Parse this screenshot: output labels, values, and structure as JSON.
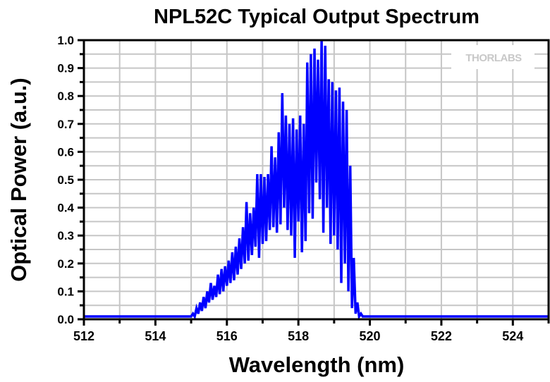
{
  "chart_data": {
    "type": "line",
    "title": "NPL52C Typical Output Spectrum",
    "xlabel": "Wavelength (nm)",
    "ylabel": "Optical Power (a.u.)",
    "xlim": [
      512,
      525
    ],
    "ylim": [
      0,
      1.0
    ],
    "x_ticks": [
      512,
      514,
      516,
      518,
      520,
      522,
      524
    ],
    "x_tick_labels": [
      "512",
      "514",
      "516",
      "518",
      "520",
      "522",
      "524"
    ],
    "y_ticks": [
      0,
      0.1,
      0.2,
      0.3,
      0.4,
      0.5,
      0.6,
      0.7,
      0.8,
      0.9,
      1.0
    ],
    "y_tick_labels": [
      "0.0",
      "0.1",
      "0.2",
      "0.3",
      "0.4",
      "0.5",
      "0.6",
      "0.7",
      "0.8",
      "0.9",
      "1.0"
    ],
    "grid": true,
    "watermark": "THORLABS",
    "series": [
      {
        "name": "NPL52C",
        "color": "#0000ff",
        "x": [
          512.0,
          512.5,
          513.0,
          513.5,
          514.0,
          514.5,
          514.9,
          515.0,
          515.05,
          515.1,
          515.15,
          515.2,
          515.25,
          515.3,
          515.35,
          515.4,
          515.45,
          515.5,
          515.55,
          515.6,
          515.65,
          515.7,
          515.75,
          515.8,
          515.85,
          515.9,
          515.95,
          516.0,
          516.05,
          516.1,
          516.15,
          516.2,
          516.25,
          516.3,
          516.35,
          516.4,
          516.45,
          516.5,
          516.55,
          516.6,
          516.65,
          516.7,
          516.75,
          516.8,
          516.85,
          516.9,
          516.95,
          517.0,
          517.05,
          517.1,
          517.15,
          517.2,
          517.25,
          517.3,
          517.35,
          517.4,
          517.45,
          517.5,
          517.55,
          517.6,
          517.65,
          517.7,
          517.75,
          517.8,
          517.85,
          517.9,
          517.95,
          518.0,
          518.05,
          518.1,
          518.15,
          518.2,
          518.25,
          518.3,
          518.35,
          518.4,
          518.45,
          518.5,
          518.55,
          518.6,
          518.65,
          518.7,
          518.75,
          518.8,
          518.85,
          518.9,
          518.95,
          519.0,
          519.05,
          519.1,
          519.15,
          519.2,
          519.25,
          519.3,
          519.35,
          519.4,
          519.45,
          519.5,
          519.55,
          519.6,
          519.65,
          519.7,
          519.75,
          519.8,
          520.0,
          521.0,
          522.0,
          523.0,
          524.0,
          525.0
        ],
        "y": [
          0.01,
          0.01,
          0.01,
          0.01,
          0.01,
          0.01,
          0.01,
          0.01,
          0.02,
          0.01,
          0.04,
          0.02,
          0.06,
          0.03,
          0.08,
          0.04,
          0.1,
          0.06,
          0.13,
          0.07,
          0.12,
          0.08,
          0.16,
          0.09,
          0.18,
          0.1,
          0.19,
          0.12,
          0.21,
          0.13,
          0.24,
          0.14,
          0.26,
          0.16,
          0.29,
          0.18,
          0.33,
          0.2,
          0.42,
          0.21,
          0.38,
          0.23,
          0.4,
          0.26,
          0.52,
          0.22,
          0.52,
          0.27,
          0.51,
          0.28,
          0.52,
          0.32,
          0.62,
          0.33,
          0.58,
          0.31,
          0.67,
          0.34,
          0.81,
          0.4,
          0.73,
          0.32,
          0.7,
          0.3,
          0.72,
          0.22,
          0.68,
          0.35,
          0.73,
          0.24,
          0.7,
          0.28,
          0.92,
          0.38,
          0.95,
          0.36,
          0.97,
          0.49,
          0.93,
          0.43,
          1.0,
          0.31,
          0.98,
          0.4,
          0.86,
          0.27,
          0.85,
          0.3,
          0.82,
          0.25,
          0.83,
          0.13,
          0.78,
          0.2,
          0.75,
          0.1,
          0.55,
          0.04,
          0.22,
          0.02,
          0.06,
          0.01,
          0.02,
          0.01,
          0.01,
          0.01,
          0.01,
          0.01,
          0.01,
          0.01
        ]
      }
    ]
  }
}
